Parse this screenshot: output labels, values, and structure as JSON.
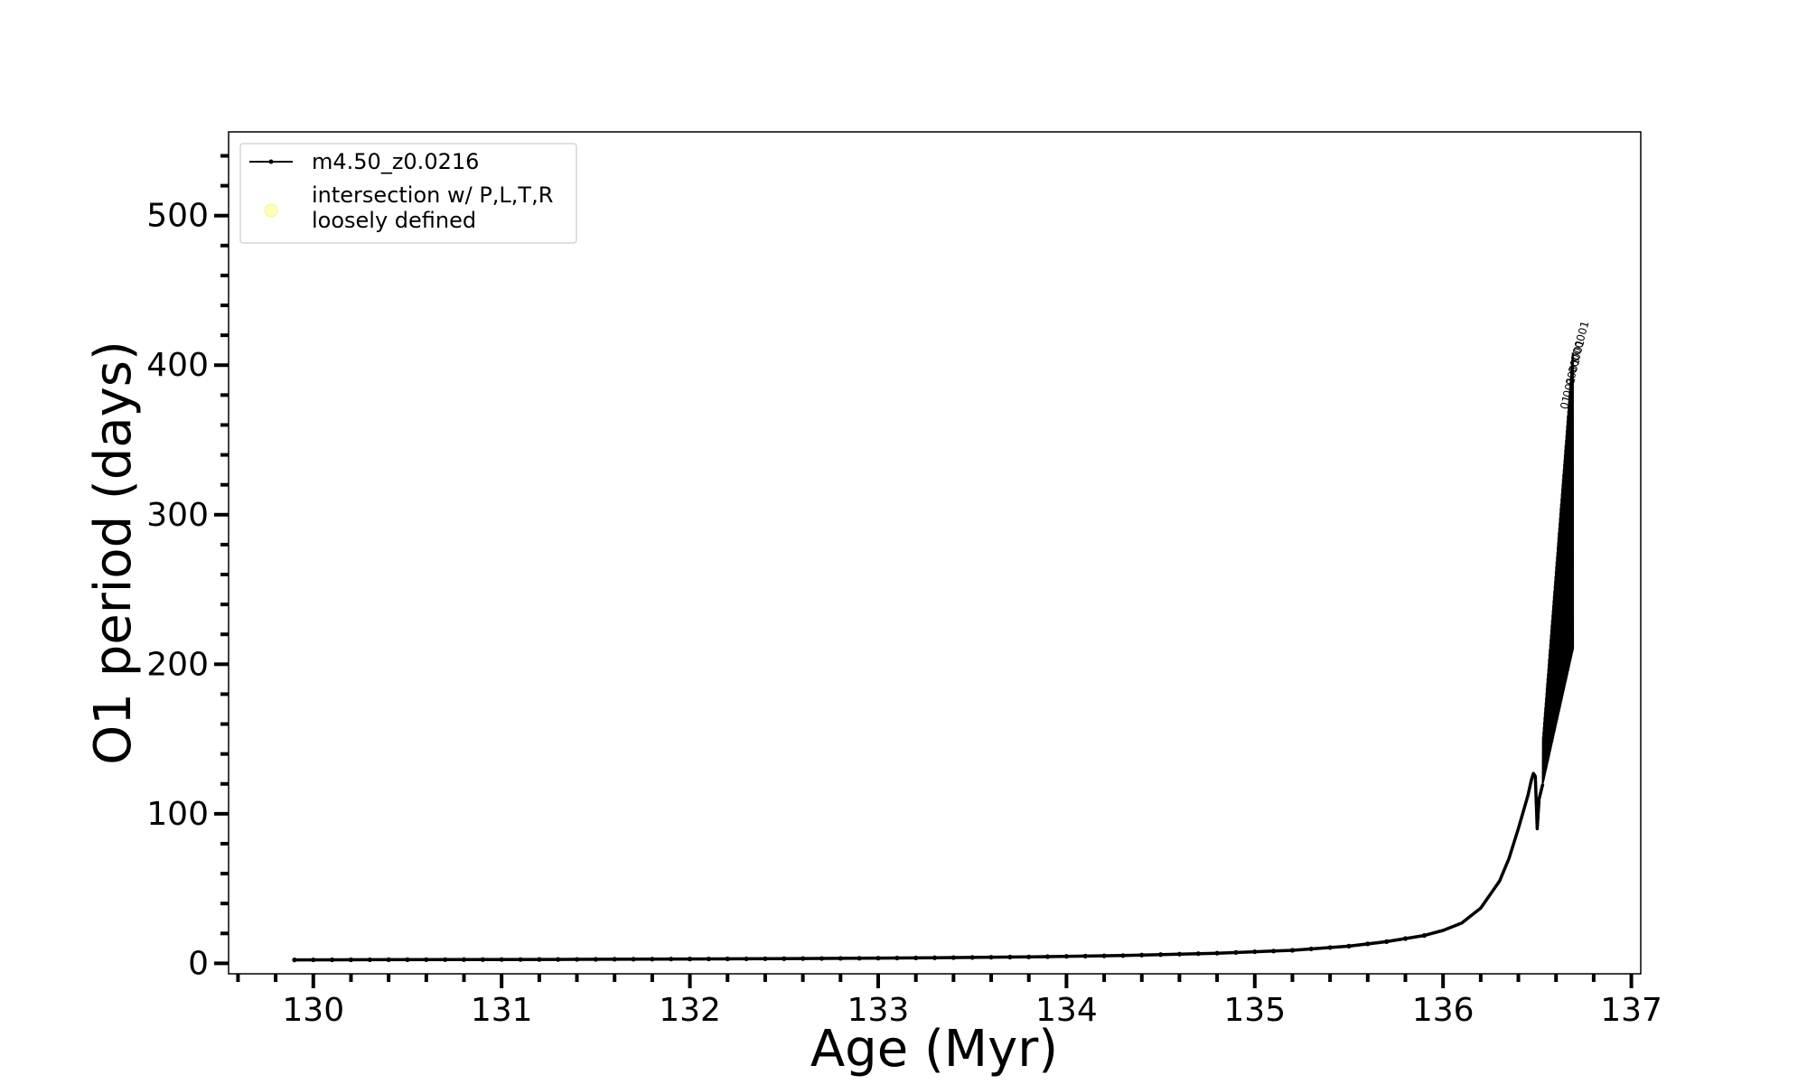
{
  "chart_data": {
    "type": "line",
    "title": "",
    "xlabel": "Age (Myr)",
    "ylabel": "O1 period (days)",
    "xlim": [
      129.55,
      137.05
    ],
    "ylim": [
      -7,
      556
    ],
    "x_ticks": [
      130,
      131,
      132,
      133,
      134,
      135,
      136,
      137
    ],
    "x_tick_labels": [
      "130",
      "131",
      "132",
      "133",
      "134",
      "135",
      "136",
      "137"
    ],
    "y_ticks": [
      0,
      100,
      200,
      300,
      400,
      500
    ],
    "y_tick_labels": [
      "0",
      "100",
      "200",
      "300",
      "400",
      "500"
    ],
    "x_minor_step": 0.2,
    "y_minor_step": 20,
    "grid": false,
    "legend_position": "upper-left",
    "legend": [
      {
        "label": "m4.50_z0.0216",
        "marker": "line-with-dots",
        "color": "#000000"
      },
      {
        "label": "intersection w/ P,L,T,R\nloosely defined",
        "marker": "circle",
        "color": "#ffffb3"
      }
    ],
    "series": [
      {
        "name": "m4.50_z0.0216",
        "color": "#000000",
        "x": [
          129.9,
          130.3,
          130.8,
          131.3,
          131.8,
          132.3,
          132.8,
          133.3,
          133.8,
          134.3,
          134.8,
          135.2,
          135.5,
          135.7,
          135.9,
          136.0,
          136.1,
          136.2,
          136.3,
          136.35,
          136.4,
          136.45,
          136.47,
          136.48,
          136.49,
          136.5,
          136.51,
          136.53
        ],
        "y": [
          2.3,
          2.4,
          2.5,
          2.6,
          2.8,
          3.0,
          3.3,
          3.7,
          4.3,
          5.2,
          6.8,
          8.7,
          11.5,
          14.5,
          18.6,
          22.0,
          27.0,
          37.0,
          55.0,
          70.0,
          90.0,
          112.0,
          123.0,
          127.0,
          125.0,
          90.0,
          110.0,
          120.0
        ]
      }
    ],
    "oscillation_band": {
      "x_start": 136.53,
      "x_end": 136.69,
      "lower": [
        120,
        210
      ],
      "upper": [
        150,
        410
      ]
    },
    "annotations": [
      "01",
      "001",
      "0001",
      "00001",
      "000001"
    ]
  }
}
